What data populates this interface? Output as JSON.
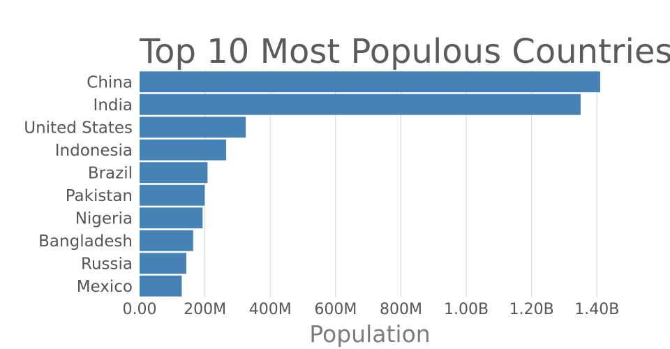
{
  "chart_data": {
    "type": "bar",
    "orientation": "horizontal",
    "title": "Top 10 Most Populous Countries",
    "xlabel": "Population",
    "ylabel": "",
    "categories": [
      "China",
      "India",
      "United States",
      "Indonesia",
      "Brazil",
      "Pakistan",
      "Nigeria",
      "Bangladesh",
      "Russia",
      "Mexico"
    ],
    "values": [
      1410000000,
      1350000000,
      325000000,
      265000000,
      208000000,
      199000000,
      193000000,
      164000000,
      143000000,
      129000000
    ],
    "xlim": [
      0,
      1500000000
    ],
    "x_ticks": [
      0,
      200000000,
      400000000,
      600000000,
      800000000,
      1000000000,
      1200000000,
      1400000000
    ],
    "x_tick_labels": [
      "0.00",
      "200M",
      "400M",
      "600M",
      "800M",
      "1.00B",
      "1.20B",
      "1.40B"
    ],
    "grid": "vertical",
    "legend": "none",
    "bar_color": "#4682b4"
  }
}
